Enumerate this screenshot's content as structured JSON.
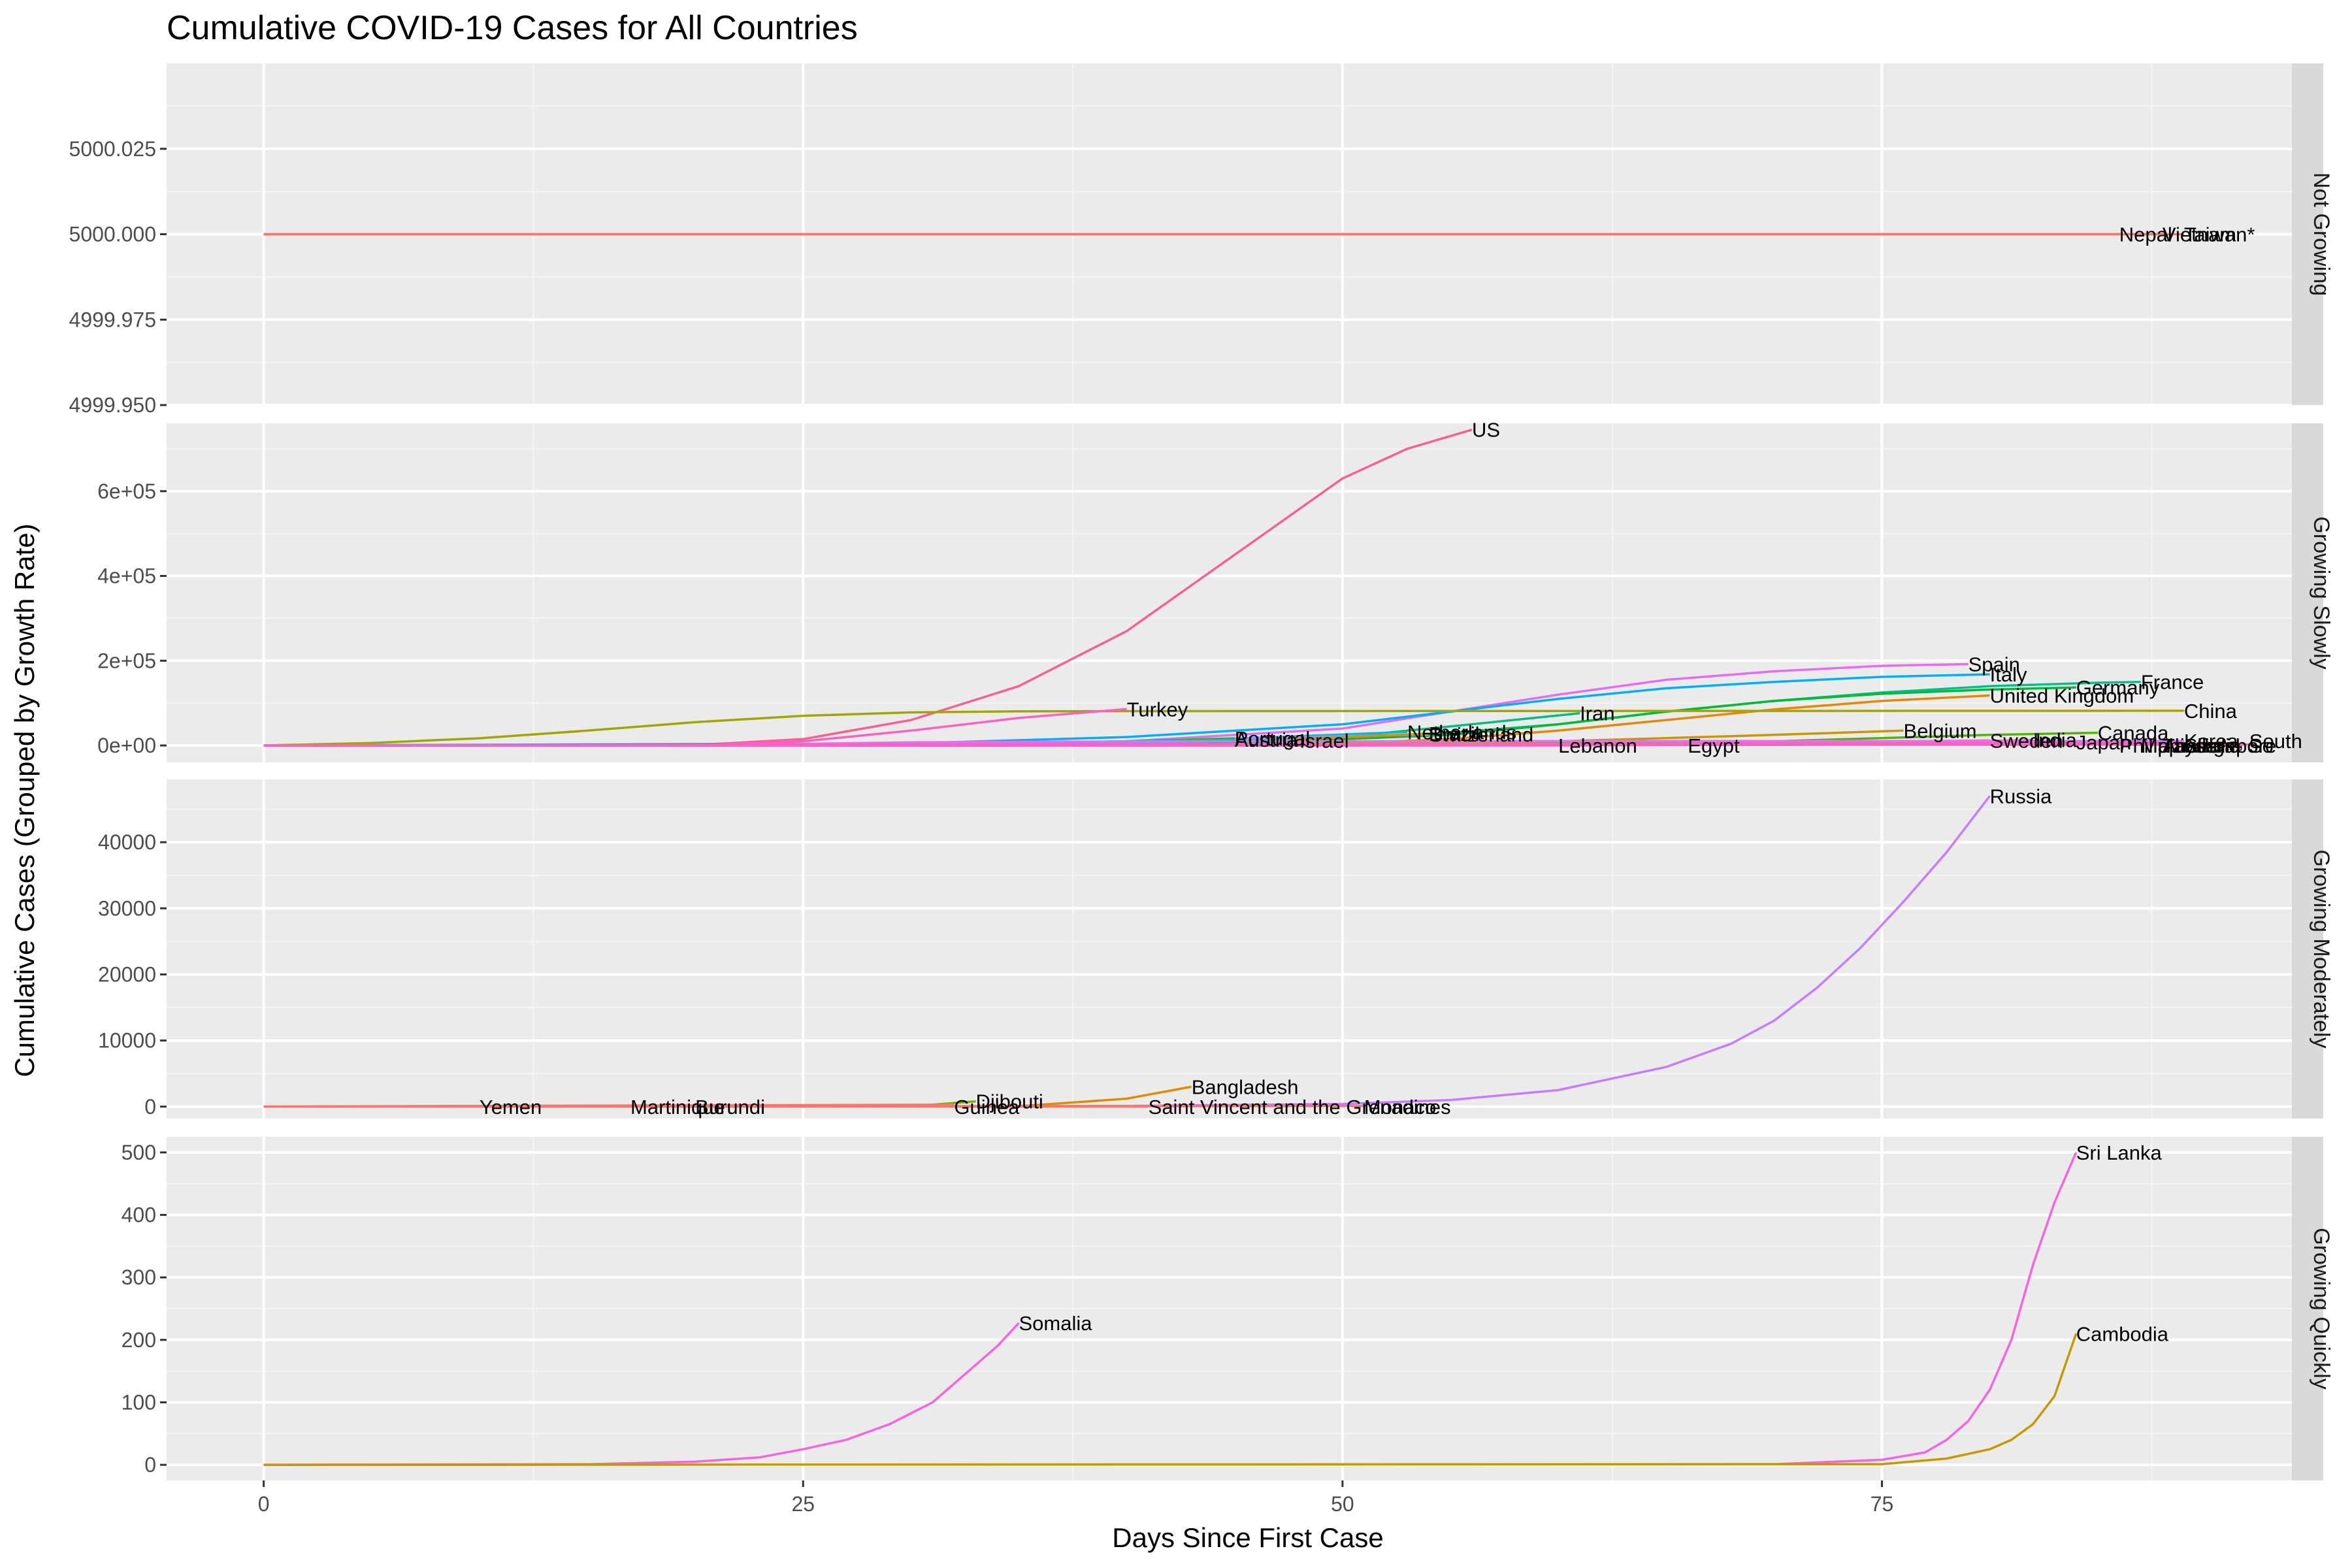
{
  "chart_data": {
    "type": "line",
    "title": "Cumulative COVID-19 Cases for All Countries",
    "xlabel": "Days Since First Case",
    "ylabel": "Cumulative Cases (Grouped by Growth Rate)",
    "x_ticks": [
      0,
      25,
      50,
      75
    ],
    "xlim": [
      -4.5,
      94
    ],
    "grid": true,
    "legend": "none",
    "facets": [
      {
        "strip": "Not Growing",
        "ylim": [
          4999.95,
          5000.05
        ],
        "y_ticks": [
          4999.95,
          4999.975,
          5000.0,
          5000.025
        ],
        "y_tick_labels": [
          "4999.950",
          "4999.975",
          "5000.000",
          "5000.025"
        ],
        "series": [
          {
            "name": "Nepal",
            "color": "#F8766D",
            "x": [
              0,
              86
            ],
            "y": [
              5000,
              5000
            ],
            "label_x": 86,
            "label_y": 5000
          },
          {
            "name": "Vietnam",
            "color": "#F8766D",
            "x": [
              0,
              88
            ],
            "y": [
              5000,
              5000
            ],
            "label_x": 88,
            "label_y": 5000
          },
          {
            "name": "Taiwan*",
            "color": "#F8766D",
            "x": [
              0,
              89
            ],
            "y": [
              5000,
              5000
            ],
            "label_x": 89,
            "label_y": 5000
          }
        ]
      },
      {
        "strip": "Growing Slowly",
        "ylim": [
          -40000,
          760000
        ],
        "y_ticks": [
          0,
          200000,
          400000,
          600000
        ],
        "y_tick_labels": [
          "0e+00",
          "2e+05",
          "4e+05",
          "6e+05"
        ],
        "series": [
          {
            "name": "US",
            "color": "#F8608F",
            "x": [
              0,
              20,
              25,
              30,
              35,
              40,
              45,
              50,
              53,
              56
            ],
            "y": [
              0,
              1000,
              15000,
              60000,
              140000,
              270000,
              450000,
              630000,
              700000,
              745000
            ],
            "label_x": 56,
            "label_y": 745000
          },
          {
            "name": "Spain",
            "color": "#E76BF3",
            "x": [
              0,
              30,
              40,
              50,
              55,
              60,
              65,
              70,
              75,
              79
            ],
            "y": [
              0,
              0,
              10000,
              40000,
              80000,
              120000,
              155000,
              175000,
              188000,
              192000
            ],
            "label_x": 79,
            "label_y": 192000
          },
          {
            "name": "Italy",
            "color": "#00B0F6",
            "x": [
              0,
              30,
              40,
              50,
              55,
              60,
              65,
              70,
              75,
              80
            ],
            "y": [
              0,
              5000,
              20000,
              50000,
              80000,
              110000,
              135000,
              150000,
              162000,
              168000
            ],
            "label_x": 80,
            "label_y": 168000
          },
          {
            "name": "France",
            "color": "#00C08B",
            "x": [
              0,
              35,
              45,
              55,
              60,
              65,
              70,
              75,
              80,
              85,
              87
            ],
            "y": [
              0,
              2000,
              8000,
              30000,
              50000,
              80000,
              105000,
              125000,
              140000,
              148000,
              150000
            ],
            "label_x": 87,
            "label_y": 150000
          },
          {
            "name": "Germany",
            "color": "#00BA38",
            "x": [
              0,
              35,
              45,
              55,
              60,
              65,
              70,
              75,
              80,
              84
            ],
            "y": [
              0,
              1000,
              5000,
              25000,
              50000,
              80000,
              105000,
              122000,
              132000,
              137000
            ],
            "label_x": 84,
            "label_y": 137000
          },
          {
            "name": "United Kingdom",
            "color": "#E58700",
            "x": [
              0,
              40,
              50,
              55,
              60,
              65,
              70,
              75,
              80
            ],
            "y": [
              0,
              0,
              5000,
              15000,
              35000,
              60000,
              85000,
              105000,
              118000
            ],
            "label_x": 80,
            "label_y": 118000
          },
          {
            "name": "China",
            "color": "#A3A500",
            "x": [
              0,
              5,
              10,
              15,
              20,
              25,
              30,
              35,
              40,
              60,
              89
            ],
            "y": [
              0,
              6000,
              17000,
              35000,
              55000,
              70000,
              78000,
              80500,
              81000,
              81500,
              82000
            ],
            "label_x": 89,
            "label_y": 82000
          },
          {
            "name": "Turkey",
            "color": "#FF61C3",
            "x": [
              0,
              20,
              25,
              30,
              35,
              40
            ],
            "y": [
              0,
              0,
              10000,
              35000,
              65000,
              86000
            ],
            "label_x": 40,
            "label_y": 86000
          },
          {
            "name": "Iran",
            "color": "#00BF7D",
            "x": [
              0,
              40,
              50,
              55,
              61
            ],
            "y": [
              0,
              3000,
              20000,
              45000,
              76000
            ],
            "label_x": 61,
            "label_y": 76000
          },
          {
            "name": "Belgium",
            "color": "#C99800",
            "x": [
              0,
              40,
              60,
              70,
              76
            ],
            "y": [
              0,
              0,
              10000,
              25000,
              35000
            ],
            "label_x": 76,
            "label_y": 35000
          },
          {
            "name": "Canada",
            "color": "#53B400",
            "x": [
              0,
              50,
              70,
              80,
              85
            ],
            "y": [
              0,
              0,
              10000,
              25000,
              30000
            ],
            "label_x": 85,
            "label_y": 30000
          },
          {
            "name": "Netherlands",
            "color": "#00BCD8",
            "x": [
              0,
              30,
              40,
              47,
              53
            ],
            "y": [
              0,
              0,
              8000,
              20000,
              32000
            ],
            "label_x": 53,
            "label_y": 32000
          },
          {
            "name": "Switzerland",
            "color": "#9590FF",
            "x": [
              0,
              30,
              40,
              50,
              54
            ],
            "y": [
              0,
              0,
              10000,
              22000,
              26000
            ],
            "label_x": 54,
            "label_y": 26000
          },
          {
            "name": "Brazil",
            "color": "#D89000",
            "x": [
              0,
              30,
              40,
              48,
              54
            ],
            "y": [
              0,
              0,
              5000,
              15000,
              28000
            ],
            "label_x": 54,
            "label_y": 28000
          },
          {
            "name": "Portugal",
            "color": "#39B600",
            "x": [
              0,
              30,
              40,
              45
            ],
            "y": [
              0,
              0,
              10000,
              17000
            ],
            "label_x": 45,
            "label_y": 17000
          },
          {
            "name": "Austria",
            "color": "#00C0AF",
            "x": [
              0,
              30,
              40,
              45
            ],
            "y": [
              0,
              0,
              10000,
              14000
            ],
            "label_x": 45,
            "label_y": 14000
          },
          {
            "name": "Israel",
            "color": "#619CFF",
            "x": [
              0,
              30,
              40,
              48
            ],
            "y": [
              0,
              0,
              8000,
              12000
            ],
            "label_x": 48,
            "label_y": 12000
          },
          {
            "name": "Sweden",
            "color": "#FF62BC",
            "x": [
              0,
              50,
              70,
              80
            ],
            "y": [
              0,
              0,
              6000,
              12000
            ],
            "label_x": 80,
            "label_y": 12000
          },
          {
            "name": "India",
            "color": "#FF6C91",
            "x": [
              0,
              60,
              75,
              82
            ],
            "y": [
              0,
              0,
              5000,
              13000
            ],
            "label_x": 82,
            "label_y": 13000
          },
          {
            "name": "Japan",
            "color": "#F066EA",
            "x": [
              0,
              60,
              78,
              84
            ],
            "y": [
              0,
              0,
              3000,
              8000
            ],
            "label_x": 84,
            "label_y": 8000
          },
          {
            "name": "Korea, South",
            "color": "#DB72FB",
            "x": [
              0,
              20,
              30,
              40,
              60,
              89
            ],
            "y": [
              0,
              0,
              7500,
              9500,
              10500,
              10600
            ],
            "label_x": 89,
            "label_y": 10600
          },
          {
            "name": "Egypt",
            "color": "#F564E3",
            "x": [
              0,
              66
            ],
            "y": [
              0,
              2500
            ],
            "label_x": 66,
            "label_y": 0
          },
          {
            "name": "Lebanon",
            "color": "#E76BF3",
            "x": [
              0,
              60
            ],
            "y": [
              0,
              700
            ],
            "label_x": 60,
            "label_y": 0
          },
          {
            "name": "Philippines",
            "color": "#FF61C3",
            "x": [
              0,
              86
            ],
            "y": [
              0,
              5000
            ],
            "label_x": 86,
            "label_y": 0
          },
          {
            "name": "Australia",
            "color": "#FF61C3",
            "x": [
              0,
              88
            ],
            "y": [
              0,
              6400
            ],
            "label_x": 88,
            "label_y": 0
          },
          {
            "name": "Singapore",
            "color": "#FF61C3",
            "x": [
              0,
              89
            ],
            "y": [
              0,
              4000
            ],
            "label_x": 89,
            "label_y": 0
          },
          {
            "name": "Malaysia",
            "color": "#FF61C3",
            "x": [
              0,
              87
            ],
            "y": [
              0,
              5000
            ],
            "label_x": 87,
            "label_y": 0
          },
          {
            "name": "Thailand",
            "color": "#FF61C3",
            "x": [
              0,
              88
            ],
            "y": [
              0,
              2700
            ],
            "label_x": 88,
            "label_y": 0
          },
          {
            "name": "So",
            "color": "#FF61C3",
            "x": [
              0,
              92
            ],
            "y": [
              0,
              2000
            ],
            "label_x": 92,
            "label_y": 0
          }
        ]
      },
      {
        "strip": "Growing Moderately",
        "ylim": [
          -1800,
          49500
        ],
        "y_ticks": [
          0,
          10000,
          20000,
          30000,
          40000
        ],
        "y_tick_labels": [
          "0",
          "10000",
          "20000",
          "30000",
          "40000"
        ],
        "series": [
          {
            "name": "Russia",
            "color": "#C77CFF",
            "x": [
              0,
              40,
              50,
              55,
              60,
              65,
              68,
              70,
              72,
              74,
              76,
              78,
              80
            ],
            "y": [
              0,
              100,
              400,
              1000,
              2500,
              6000,
              9500,
              13000,
              18000,
              24000,
              31000,
              38500,
              47000
            ],
            "label_x": 80,
            "label_y": 47000
          },
          {
            "name": "Bangladesh",
            "color": "#DE8C00",
            "x": [
              0,
              35,
              40,
              43
            ],
            "y": [
              0,
              50,
              1200,
              3000
            ],
            "label_x": 43,
            "label_y": 3000
          },
          {
            "name": "Djibouti",
            "color": "#7CAE00",
            "x": [
              0,
              30,
              33
            ],
            "y": [
              0,
              50,
              800
            ],
            "label_x": 33,
            "label_y": 800
          },
          {
            "name": "Monaco",
            "color": "#F8766D",
            "x": [
              0,
              51
            ],
            "y": [
              0,
              90
            ],
            "label_x": 51,
            "label_y": 0
          },
          {
            "name": "Yemen",
            "color": "#F8766D",
            "x": [
              0,
              10
            ],
            "y": [
              0,
              1
            ],
            "label_x": 10,
            "label_y": 0
          },
          {
            "name": "Martinique",
            "color": "#F8766D",
            "x": [
              0,
              17
            ],
            "y": [
              0,
              160
            ],
            "label_x": 17,
            "label_y": 0
          },
          {
            "name": "Burundi",
            "color": "#F8766D",
            "x": [
              0,
              20
            ],
            "y": [
              0,
              5
            ],
            "label_x": 20,
            "label_y": 0
          },
          {
            "name": "Guinea",
            "color": "#F8766D",
            "x": [
              0,
              32
            ],
            "y": [
              0,
              300
            ],
            "label_x": 32,
            "label_y": 0
          },
          {
            "name": "Saint Vincent and the Grenadines",
            "color": "#F8766D",
            "x": [
              0,
              41
            ],
            "y": [
              0,
              12
            ],
            "label_x": 41,
            "label_y": 0
          }
        ]
      },
      {
        "strip": "Growing Quickly",
        "ylim": [
          -25,
          525
        ],
        "y_ticks": [
          0,
          100,
          200,
          300,
          400,
          500
        ],
        "y_tick_labels": [
          "0",
          "100",
          "200",
          "300",
          "400",
          "500"
        ],
        "series": [
          {
            "name": "Somalia",
            "color": "#F564E3",
            "x": [
              0,
              15,
              20,
              23,
              25,
              27,
              29,
              31,
              32,
              33,
              34,
              35
            ],
            "y": [
              0,
              1,
              5,
              12,
              25,
              40,
              65,
              100,
              130,
              160,
              190,
              227
            ],
            "label_x": 35,
            "label_y": 227
          },
          {
            "name": "Sri Lanka",
            "color": "#F564E3",
            "x": [
              0,
              70,
              75,
              77,
              78,
              79,
              80,
              81,
              82,
              83,
              84
            ],
            "y": [
              0,
              1,
              8,
              20,
              40,
              70,
              120,
              200,
              320,
              420,
              500
            ],
            "label_x": 84,
            "label_y": 500
          },
          {
            "name": "Cambodia",
            "color": "#C49A00",
            "x": [
              0,
              75,
              78,
              80,
              81,
              82,
              83,
              84
            ],
            "y": [
              0,
              1,
              10,
              25,
              40,
              65,
              110,
              210
            ],
            "label_x": 84,
            "label_y": 210
          }
        ]
      }
    ]
  }
}
